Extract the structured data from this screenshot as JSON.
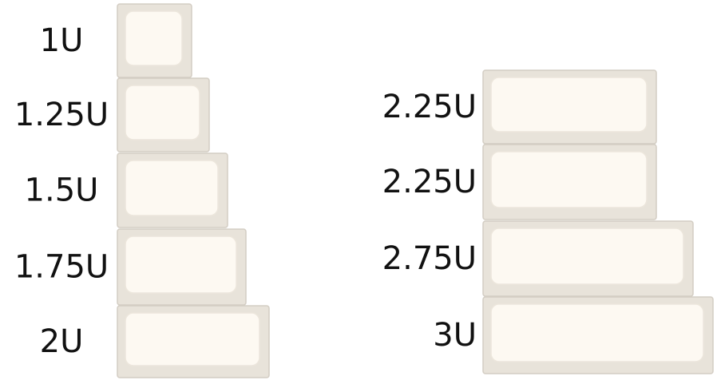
{
  "left_keys": [
    {
      "label": "1U"
    },
    {
      "label": "1.25U"
    },
    {
      "label": "1.5U"
    },
    {
      "label": "1.75U"
    },
    {
      "label": "2U"
    }
  ],
  "right_keys": [
    {
      "label": "2.25U"
    },
    {
      "label": "2.25U"
    },
    {
      "label": "2.75U"
    },
    {
      "label": "3U"
    }
  ]
}
